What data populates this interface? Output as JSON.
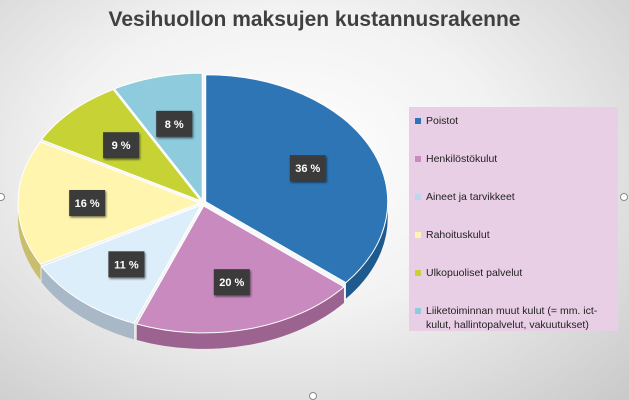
{
  "chart_data": {
    "type": "pie",
    "title": "Vesihuollon maksujen kustannusrakenne",
    "categories": [
      "Poistot",
      "Henkilöstökulut",
      "Aineet ja tarvikkeet",
      "Rahoituskulut",
      "Ulkopuoliset palvelut",
      "Liiketoiminnan muut kulut (= mm. ict-kulut, hallintopalvelut, vakuutukset)"
    ],
    "values": [
      36,
      20,
      11,
      16,
      9,
      8
    ],
    "data_labels": [
      "36 %",
      "20 %",
      "11 %",
      "16 %",
      "9 %",
      "8 %"
    ],
    "colors": [
      "#2e75b6",
      "#c98ac0",
      "#ddeefb",
      "#fff5ae",
      "#c7d335",
      "#8ecbdc"
    ],
    "side_colors": [
      "#1f5a8f",
      "#9c6391",
      "#a8b8c6",
      "#c9bd6e",
      "#8e9820",
      "#5d9aab"
    ],
    "legend": {
      "position": "right",
      "background": "#e8cfe5"
    },
    "style": "3d-exploded"
  }
}
